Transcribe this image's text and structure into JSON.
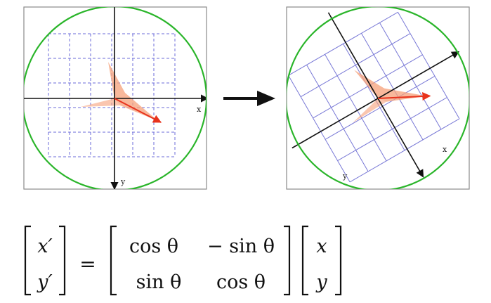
{
  "panels": {
    "left": {
      "x_axis_label": "x",
      "y_axis_label": "y"
    },
    "right": {
      "x_axis_label": "x",
      "y_axis_label": "y"
    }
  },
  "transform": {
    "rotation_deg": 30
  },
  "colors": {
    "circle": "#2ab52a",
    "grid_dashed": "#6b6bd8",
    "grid_solid": "#7878d6",
    "axis": "#111111",
    "shape": "#f6a07a",
    "vector": "#e8331d",
    "frame": "#8a8a8a",
    "arrow": "#111111"
  },
  "equation": {
    "lhs": [
      "x′",
      "y′"
    ],
    "equals": "=",
    "matrix": [
      [
        "cos θ",
        "− sin θ"
      ],
      [
        "sin θ",
        "cos θ"
      ]
    ],
    "rhs": [
      "x",
      "y"
    ]
  }
}
